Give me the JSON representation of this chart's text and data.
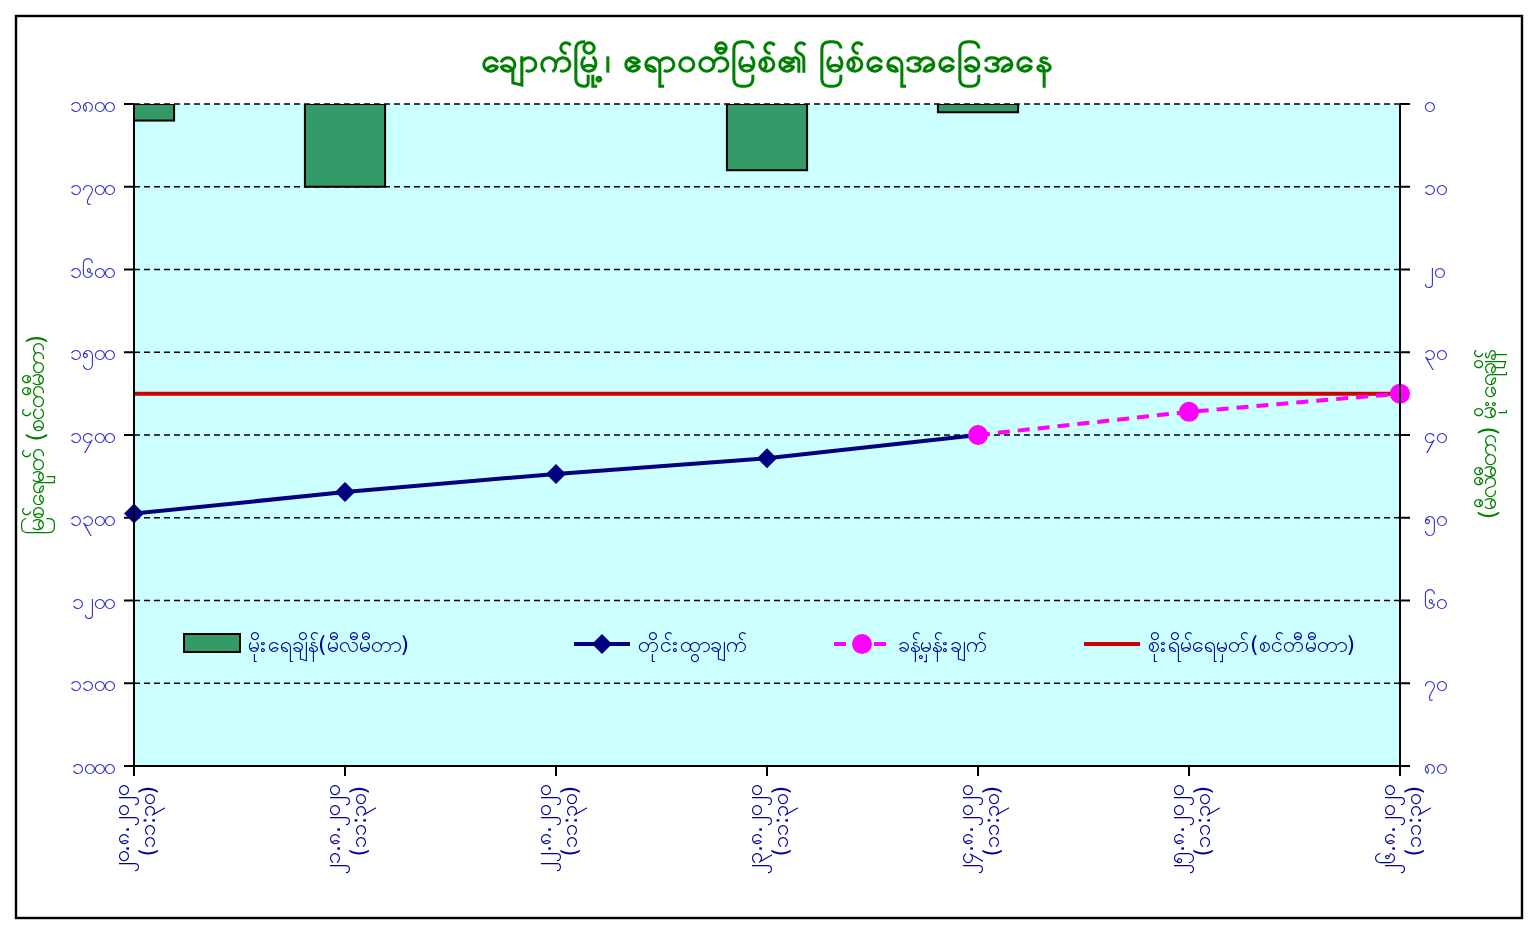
{
  "chart_data": {
    "type": "line",
    "title": "ချောက်မြို့၊ ဧရာဝတီမြစ်၏ မြစ်ရေအခြေအနေ",
    "ylabel": "မြစ်ရေမှတ် (စင်တီမီတာ)",
    "y2label": "(မီလီမီတာ) မိုးရေချိန်",
    "categories": [
      "၂၀.၈.၂၀၂၀\n(၁၁:၃၀)",
      "၂၁.၈.၂၀၂၀\n(၁၁:၃၀)",
      "၂၂.၈.၂၀၂၀\n(၁၁:၃၀)",
      "၂၃.၈.၂၀၂၀\n(၁၁:၃၀)",
      "၂၄.၈.၂၀၂၀\n(၁၁:၃၀)",
      "၂၅.၈.၂၀၂၀\n(၁၁:၃၀)",
      "၂၆.၈.၂၀၂၀\n(၁၁:၃၀)"
    ],
    "series": [
      {
        "name": "မိုးရေချိန်(မီလီမီတာ)",
        "type": "bar",
        "axis": "y2",
        "color": "#339966",
        "values": [
          2,
          10,
          null,
          8,
          1,
          null,
          null
        ]
      },
      {
        "name": "တိုင်းထွာချက်",
        "color": "#000080",
        "marker": "diamond",
        "line_style": "solid",
        "values": [
          1305,
          1331,
          1353,
          1372,
          1400,
          null,
          null
        ]
      },
      {
        "name": "ခန့်မှန်းချက်",
        "color": "#ff00ff",
        "marker": "circle",
        "line_style": "dashed",
        "values": [
          null,
          null,
          null,
          null,
          1400,
          1428,
          1450
        ]
      }
    ],
    "ref_lines": [
      {
        "axis": "y",
        "value": 1450,
        "label": "စိုးရိမ်ရေမှတ်(စင်တီမီတာ)",
        "color": "#cc0000"
      }
    ],
    "ylim": [
      1000,
      1800
    ],
    "yticks": [
      {
        "value": 1000,
        "label": "၁၀၀၀"
      },
      {
        "value": 1100,
        "label": "၁၁၀၀"
      },
      {
        "value": 1200,
        "label": "၁၂၀၀"
      },
      {
        "value": 1300,
        "label": "၁၃၀၀"
      },
      {
        "value": 1400,
        "label": "၁၄၀၀"
      },
      {
        "value": 1500,
        "label": "၁၅၀၀"
      },
      {
        "value": 1600,
        "label": "၁၆၀၀"
      },
      {
        "value": 1700,
        "label": "၁၇၀၀"
      },
      {
        "value": 1800,
        "label": "၁၈၀၀"
      }
    ],
    "y2lim": [
      80,
      0
    ],
    "y2ticks": [
      {
        "value": 0,
        "label": "၀"
      },
      {
        "value": 10,
        "label": "၁၀"
      },
      {
        "value": 20,
        "label": "၂၀"
      },
      {
        "value": 30,
        "label": "၃၀"
      },
      {
        "value": 40,
        "label": "၄၀"
      },
      {
        "value": 50,
        "label": "၅၀"
      },
      {
        "value": 60,
        "label": "၆၀"
      },
      {
        "value": 70,
        "label": "၇၀"
      },
      {
        "value": 80,
        "label": "၈၀"
      }
    ],
    "grid": "y",
    "legend": "bottom"
  }
}
